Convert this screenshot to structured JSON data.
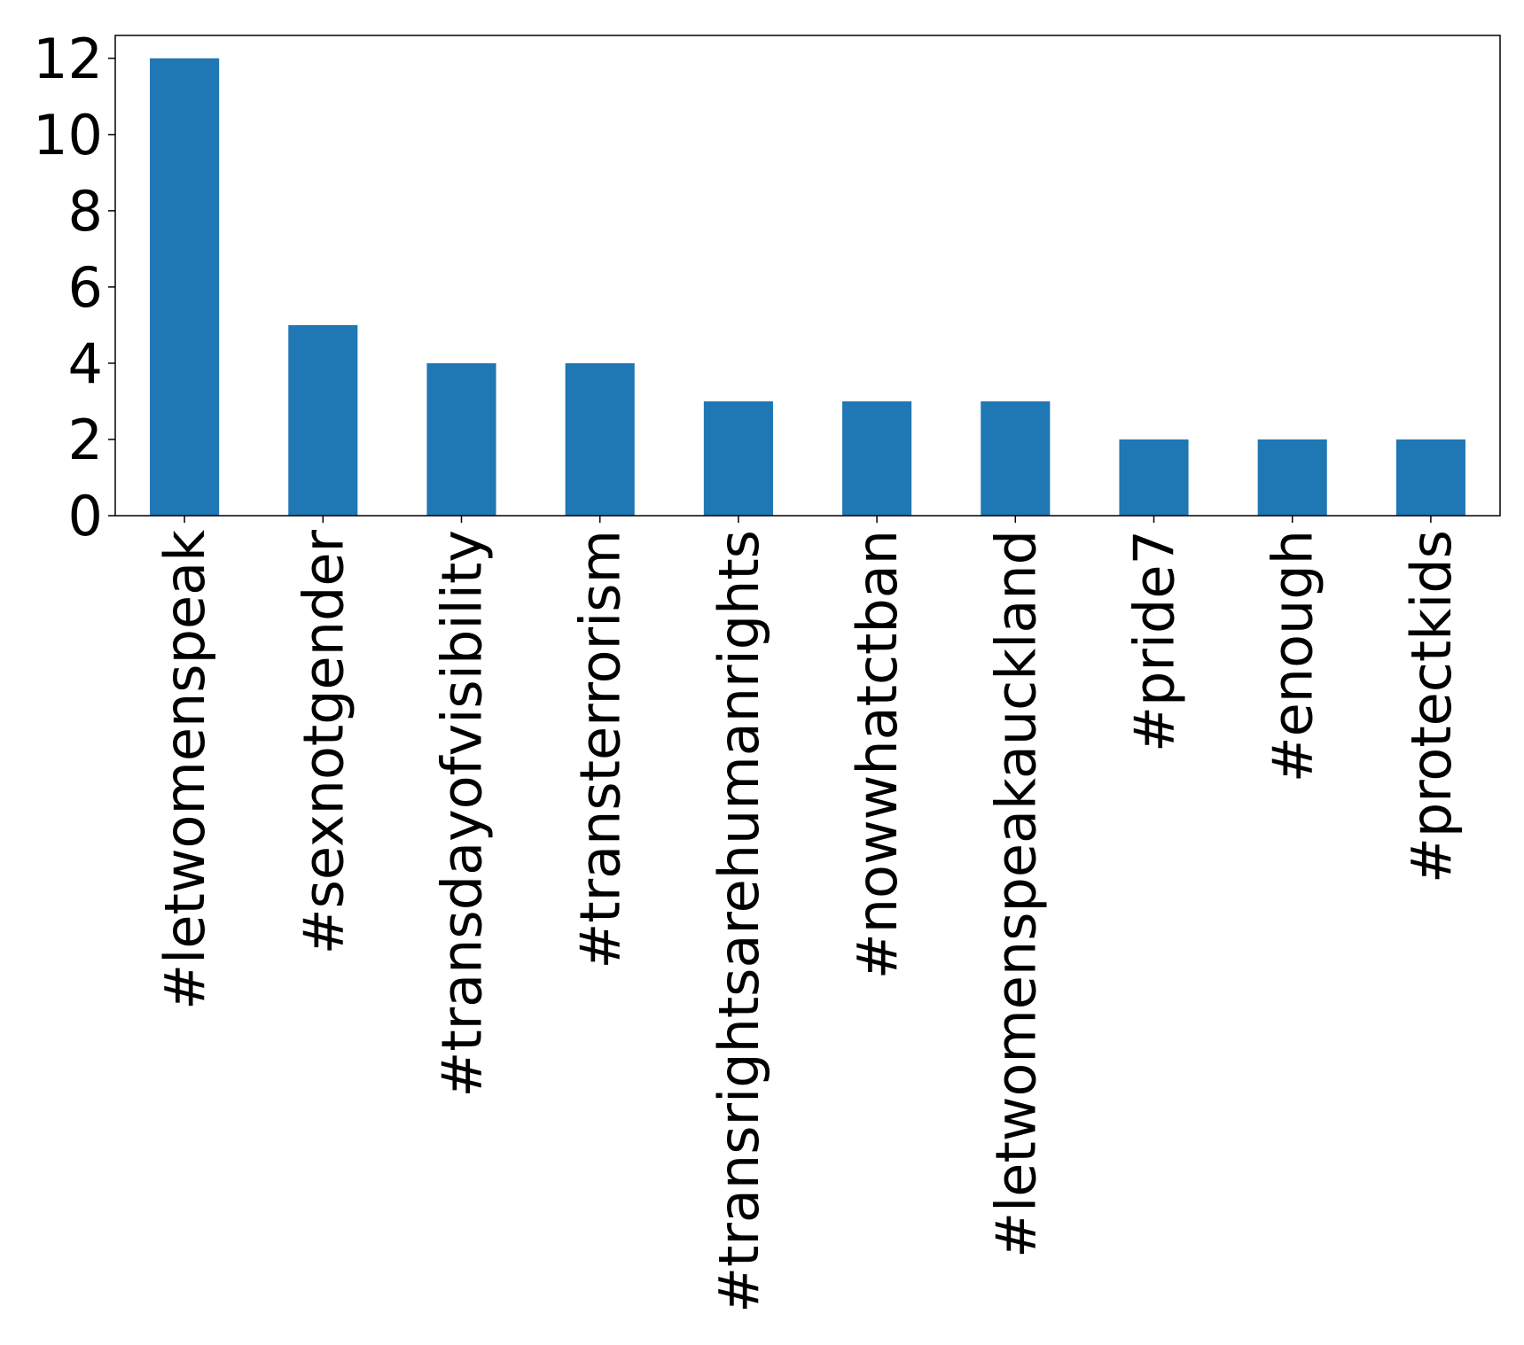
{
  "chart_data": {
    "type": "bar",
    "title": "",
    "xlabel": "",
    "ylabel": "",
    "categories": [
      "#letwomenspeak",
      "#sexnotgender",
      "#transdayofvisibility",
      "#transterrorism",
      "#transrightsarehumanrights",
      "#nowwhatctban",
      "#letwomenspeakauckland",
      "#pride7",
      "#enough",
      "#protectkids"
    ],
    "values": [
      12,
      5,
      4,
      4,
      3,
      3,
      3,
      2,
      2,
      2
    ],
    "ylim": [
      0,
      12.6
    ],
    "yticks": [
      0,
      2,
      4,
      6,
      8,
      10,
      12
    ],
    "yticklabels": [
      "0",
      "2",
      "4",
      "6",
      "8",
      "10",
      "12"
    ],
    "grid": false,
    "legend": "none",
    "bar_color": "#1f77b4",
    "frame_color": "#000000"
  }
}
